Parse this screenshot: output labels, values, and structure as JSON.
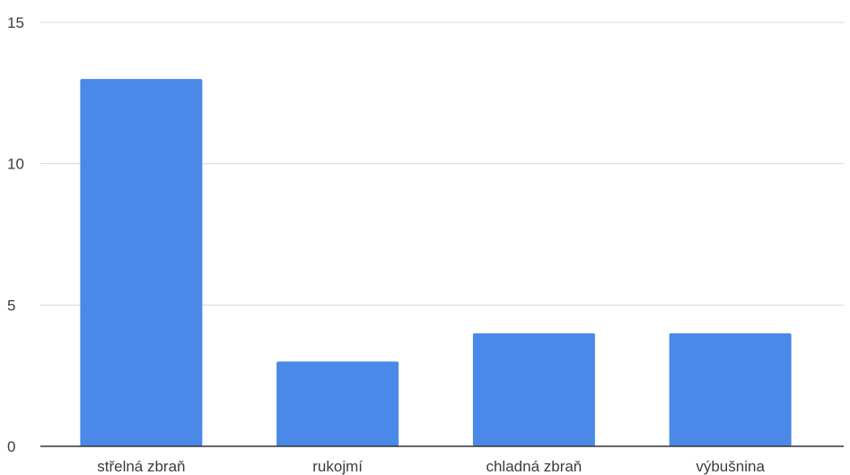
{
  "chart_data": {
    "type": "bar",
    "categories": [
      "střelná zbraň",
      "rukojmí",
      "chladná zbraň",
      "výbušnina"
    ],
    "values": [
      13,
      3,
      4,
      4
    ],
    "ylim": [
      0,
      15
    ],
    "yticks": [
      0,
      5,
      10,
      15
    ],
    "grid": true,
    "colors": {
      "bar": "#4a89e8",
      "grid": "#d9d9d9",
      "baseline": "#333333",
      "text": "#3c3c3c"
    }
  }
}
